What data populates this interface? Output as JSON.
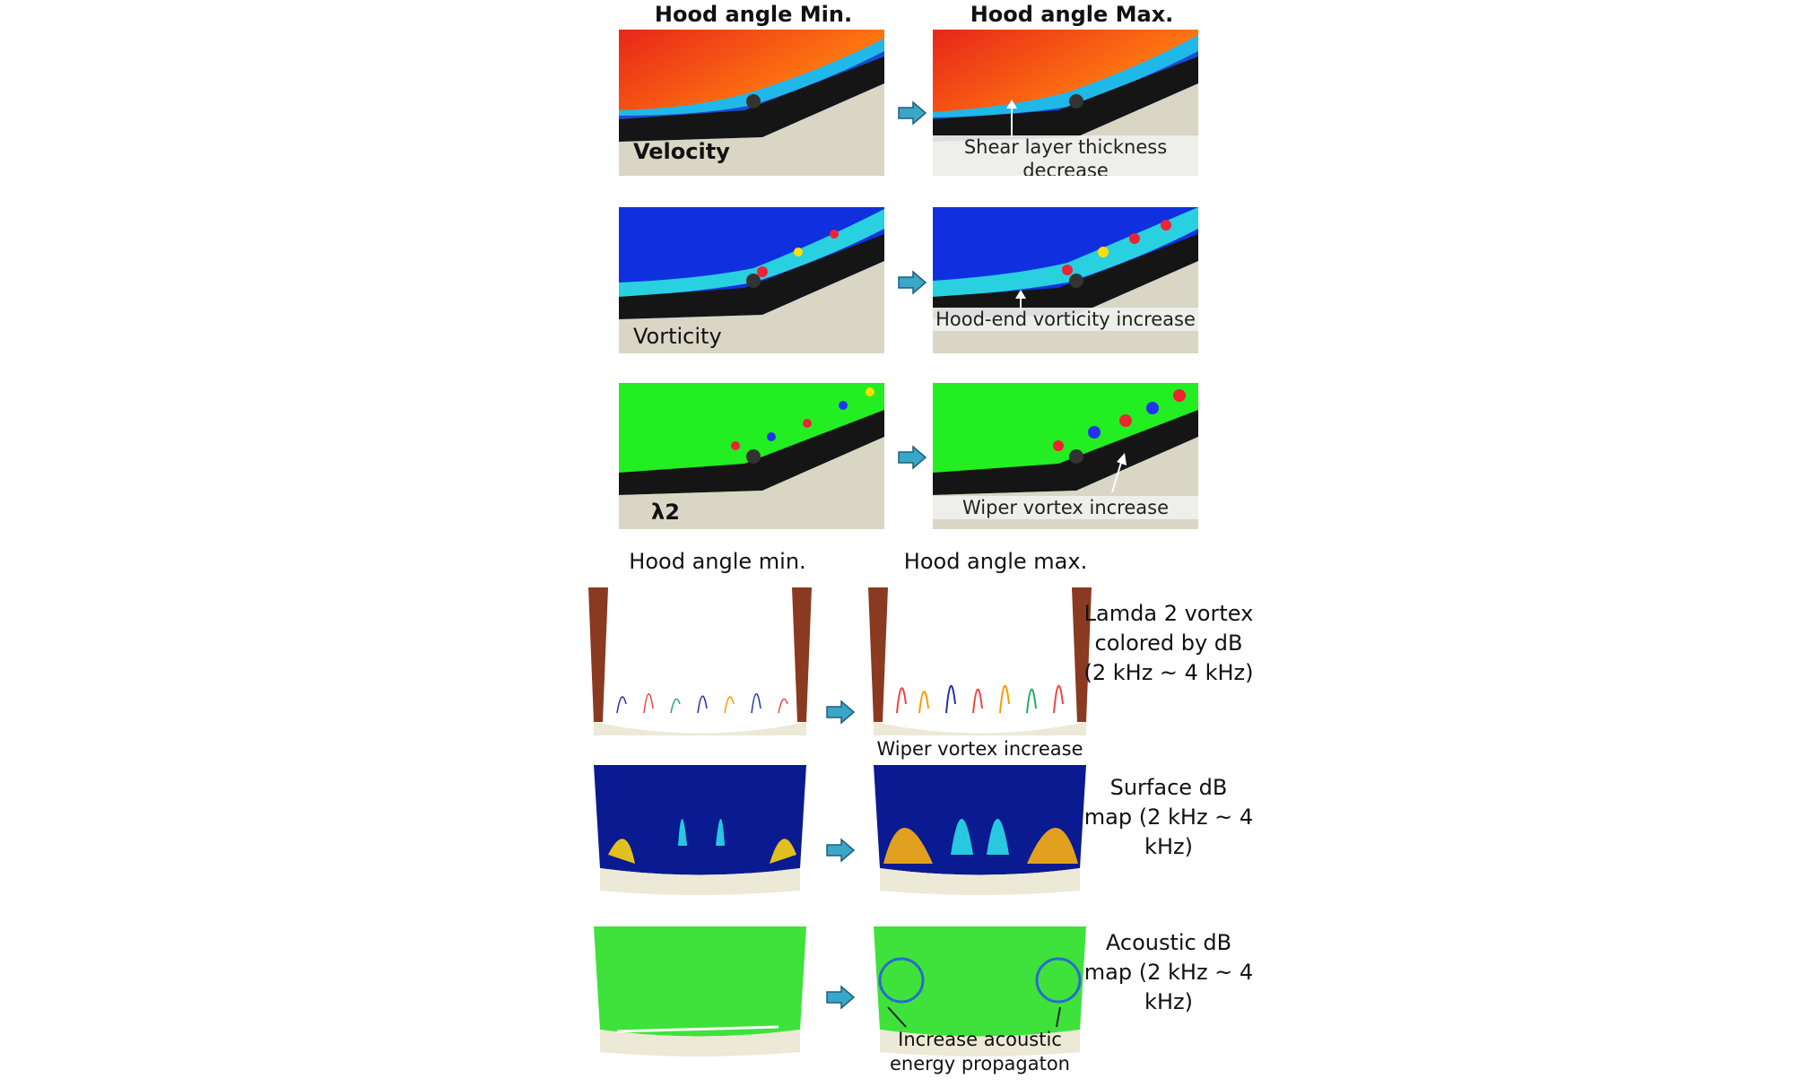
{
  "top": {
    "header_min": "Hood angle Min.",
    "header_max": "Hood angle Max.",
    "rows": [
      {
        "label": "Velocity",
        "annotation": "Shear layer thickness decrease"
      },
      {
        "label": "Vorticity",
        "annotation": "Hood-end vorticity increase"
      },
      {
        "label": "λ2",
        "annotation": "Wiper vortex increase"
      }
    ]
  },
  "bottom": {
    "header_min": "Hood angle min.",
    "header_max": "Hood angle max.",
    "rows": [
      {
        "side": "Lamda 2 vortex colored by dB (2 kHz ~ 4 kHz)",
        "note": "Wiper vortex increase"
      },
      {
        "side": "Surface dB map (2 kHz ~ 4 kHz)",
        "note": ""
      },
      {
        "side": "Acoustic dB map (2 kHz ~ 4 kHz)",
        "note": "Increase acoustic energy propagaton"
      }
    ]
  },
  "colors": {
    "velocity_hot": "#e8261a",
    "velocity_cold": "#1e4bd8",
    "vorticity_bg": "#1030e0",
    "lambda_bg": "#22ee22",
    "arrow": "#3aa6c8"
  }
}
